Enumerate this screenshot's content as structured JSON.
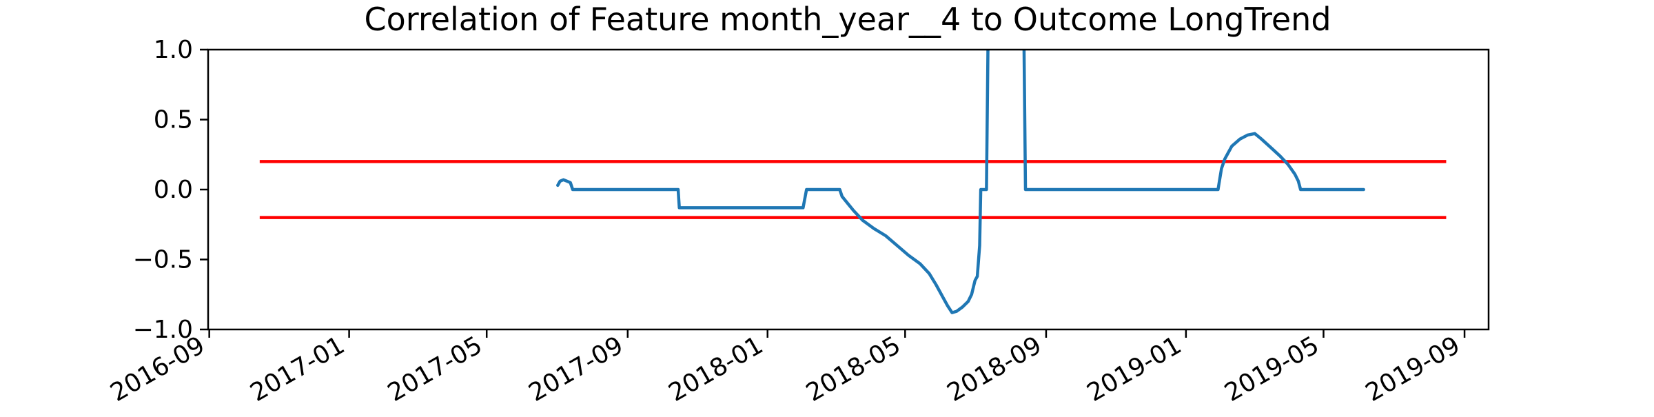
{
  "chart_data": {
    "type": "line",
    "title": "Correlation of Feature month_year__4 to Outcome LongTrend",
    "xlabel": "",
    "ylabel": "",
    "x_axis": {
      "type": "date",
      "range": [
        "2016-08-31",
        "2019-09-22"
      ],
      "ticks": [
        "2016-09-01",
        "2017-01-01",
        "2017-05-01",
        "2017-09-01",
        "2018-01-01",
        "2018-05-01",
        "2018-09-01",
        "2019-01-01",
        "2019-05-01",
        "2019-09-01"
      ],
      "tick_labels": [
        "2016-09",
        "2017-01",
        "2017-05",
        "2017-09",
        "2018-01",
        "2018-05",
        "2018-09",
        "2019-01",
        "2019-05",
        "2019-09"
      ]
    },
    "y_axis": {
      "range": [
        -1.0,
        1.0
      ],
      "ticks": [
        -1.0,
        -0.5,
        0.0,
        0.5,
        1.0
      ],
      "tick_labels": [
        "−1.0",
        "−0.5",
        "0.0",
        "0.5",
        "1.0"
      ]
    },
    "grid": false,
    "series": [
      {
        "color": "#1f77b4",
        "points": [
          [
            "2017-07-02",
            0.03
          ],
          [
            "2017-07-04",
            0.06
          ],
          [
            "2017-07-07",
            0.07
          ],
          [
            "2017-07-10",
            0.06
          ],
          [
            "2017-07-13",
            0.05
          ],
          [
            "2017-07-15",
            0.0
          ],
          [
            "2017-10-15",
            0.0
          ],
          [
            "2017-10-16",
            -0.13
          ],
          [
            "2018-02-01",
            -0.13
          ],
          [
            "2018-02-04",
            0.0
          ],
          [
            "2018-03-05",
            0.0
          ],
          [
            "2018-03-07",
            -0.05
          ],
          [
            "2018-03-12",
            -0.1
          ],
          [
            "2018-03-17",
            -0.15
          ],
          [
            "2018-03-25",
            -0.22
          ],
          [
            "2018-04-04",
            -0.28
          ],
          [
            "2018-04-14",
            -0.33
          ],
          [
            "2018-04-24",
            -0.4
          ],
          [
            "2018-05-04",
            -0.47
          ],
          [
            "2018-05-14",
            -0.53
          ],
          [
            "2018-05-22",
            -0.6
          ],
          [
            "2018-05-28",
            -0.68
          ],
          [
            "2018-06-03",
            -0.77
          ],
          [
            "2018-06-07",
            -0.83
          ],
          [
            "2018-06-11",
            -0.88
          ],
          [
            "2018-06-15",
            -0.87
          ],
          [
            "2018-06-20",
            -0.84
          ],
          [
            "2018-06-25",
            -0.8
          ],
          [
            "2018-06-28",
            -0.75
          ],
          [
            "2018-07-01",
            -0.65
          ],
          [
            "2018-07-03",
            -0.62
          ],
          [
            "2018-07-05",
            -0.4
          ],
          [
            "2018-07-06",
            0.0
          ],
          [
            "2018-07-11",
            0.0
          ],
          [
            "2018-07-13",
            1.6
          ],
          [
            "2018-08-12",
            1.6
          ],
          [
            "2018-08-14",
            0.0
          ],
          [
            "2019-01-29",
            0.0
          ],
          [
            "2019-02-01",
            0.15
          ],
          [
            "2019-02-04",
            0.22
          ],
          [
            "2019-02-10",
            0.31
          ],
          [
            "2019-02-17",
            0.36
          ],
          [
            "2019-02-24",
            0.39
          ],
          [
            "2019-03-02",
            0.4
          ],
          [
            "2019-03-08",
            0.36
          ],
          [
            "2019-03-16",
            0.3
          ],
          [
            "2019-03-24",
            0.24
          ],
          [
            "2019-03-31",
            0.18
          ],
          [
            "2019-04-06",
            0.11
          ],
          [
            "2019-04-09",
            0.06
          ],
          [
            "2019-04-11",
            0.0
          ],
          [
            "2019-06-05",
            0.0
          ]
        ]
      }
    ],
    "reference_lines": [
      {
        "color": "#ff0000",
        "y": 0.2,
        "x_start": "2016-10-15",
        "x_end": "2019-08-16"
      },
      {
        "color": "#ff0000",
        "y": -0.2,
        "x_start": "2016-10-15",
        "x_end": "2019-08-16"
      }
    ]
  }
}
